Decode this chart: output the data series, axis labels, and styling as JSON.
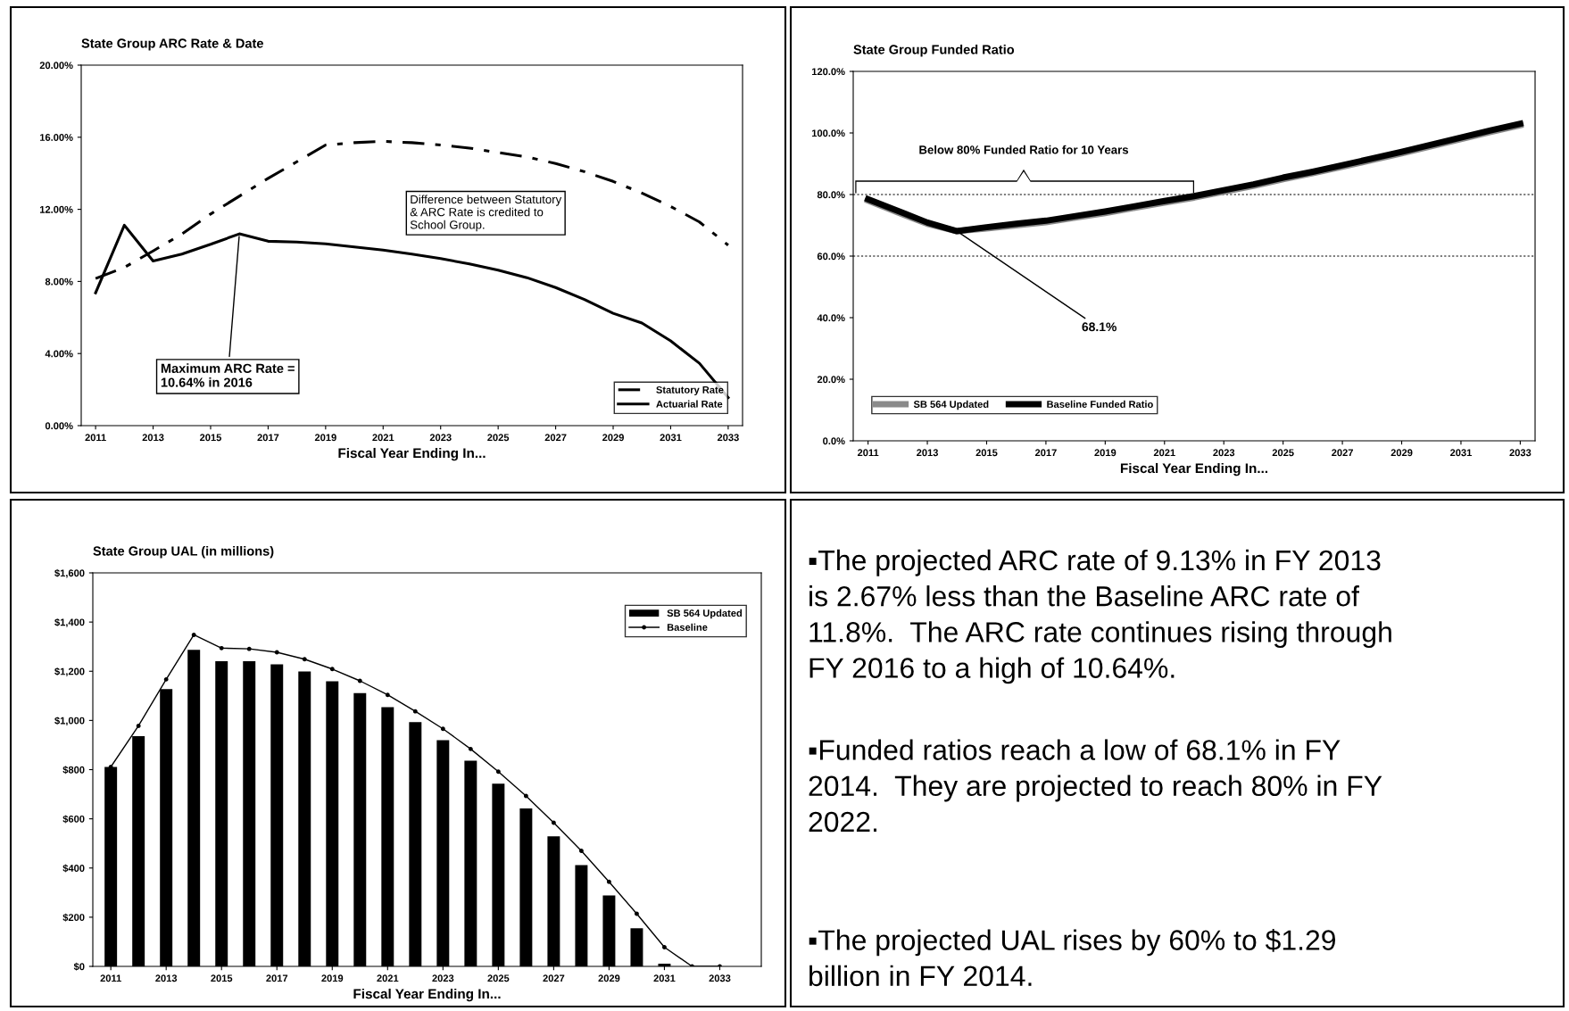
{
  "chart_data": [
    {
      "type": "line",
      "title": "State Group ARC Rate & Date",
      "xlabel": "Fiscal Year Ending In...",
      "x": [
        2011,
        2012,
        2013,
        2014,
        2015,
        2016,
        2017,
        2018,
        2019,
        2020,
        2021,
        2022,
        2023,
        2024,
        2025,
        2026,
        2027,
        2028,
        2029,
        2030,
        2031,
        2032,
        2033
      ],
      "series": [
        {
          "name": "Statutory Rate",
          "color": "#000000",
          "line_style": "dashed",
          "values": [
            8.16,
            8.78,
            9.69,
            10.63,
            11.74,
            12.73,
            13.72,
            14.64,
            15.57,
            15.7,
            15.77,
            15.7,
            15.57,
            15.4,
            15.15,
            14.91,
            14.54,
            14.09,
            13.55,
            12.9,
            12.16,
            11.3,
            10.01
          ]
        },
        {
          "name": "Actuarial Rate",
          "color": "#000000",
          "line_style": "solid",
          "values": [
            7.37,
            11.12,
            9.13,
            9.52,
            10.06,
            10.64,
            10.23,
            10.19,
            10.09,
            9.91,
            9.74,
            9.52,
            9.27,
            8.97,
            8.63,
            8.21,
            7.66,
            7.0,
            6.23,
            5.69,
            4.7,
            3.46,
            1.56
          ]
        }
      ],
      "xlim": [
        2010.5,
        2033.5
      ],
      "xticks": [
        2011,
        2013,
        2015,
        2017,
        2019,
        2021,
        2023,
        2025,
        2027,
        2029,
        2031,
        2033
      ],
      "ylim": [
        0,
        20
      ],
      "yticks": [
        {
          "value": 0,
          "label": "0.00%"
        },
        {
          "value": 4,
          "label": "4.00%"
        },
        {
          "value": 8,
          "label": "8.00%"
        },
        {
          "value": 12,
          "label": "12.00%"
        },
        {
          "value": 16,
          "label": "16.00%"
        },
        {
          "value": 20,
          "label": "20.00%"
        }
      ],
      "legend": "bottom right",
      "annotations": [
        "Difference between Statutory\n& ARC Rate is credited to\nSchool Group.",
        {
          "text": "Maximum ARC Rate =\n10.64% in 2016",
          "x": 2016,
          "y": 10.64
        }
      ]
    },
    {
      "type": "line",
      "title": "State Group Funded Ratio",
      "xlabel": "Fiscal Year Ending In...",
      "x": [
        2011,
        2012,
        2013,
        2014,
        2015,
        2016,
        2017,
        2018,
        2019,
        2020,
        2021,
        2022,
        2023,
        2024,
        2025,
        2026,
        2027,
        2028,
        2029,
        2030,
        2031,
        2032,
        2033
      ],
      "series": [
        {
          "name": "SB 564 Updated",
          "color": "#8a8a8a",
          "values": [
            78.0,
            74.2,
            70.5,
            68.1,
            69.0,
            70.0,
            71.0,
            72.5,
            74.0,
            75.7,
            77.4,
            79.0,
            80.9,
            82.8,
            85.0,
            86.9,
            89.0,
            91.2,
            93.4,
            95.7,
            98.0,
            100.3,
            102.5
          ]
        },
        {
          "name": "Baseline Funded Ratio",
          "color": "#000000",
          "values": [
            78.5,
            74.7,
            70.9,
            68.1,
            69.4,
            70.5,
            71.5,
            73.0,
            74.5,
            76.2,
            77.9,
            79.5,
            81.4,
            83.3,
            85.5,
            87.4,
            89.5,
            91.7,
            93.9,
            96.2,
            98.5,
            100.8,
            103.0
          ]
        }
      ],
      "xlim": [
        2010.5,
        2033.5
      ],
      "xticks": [
        2011,
        2013,
        2015,
        2017,
        2019,
        2021,
        2023,
        2025,
        2027,
        2029,
        2031,
        2033
      ],
      "ylim": [
        0,
        120
      ],
      "yticks": [
        {
          "value": 0,
          "label": "0.0%"
        },
        {
          "value": 20,
          "label": "20.0%"
        },
        {
          "value": 40,
          "label": "40.0%"
        },
        {
          "value": 60,
          "label": "60.0%"
        },
        {
          "value": 80,
          "label": "80.0%"
        },
        {
          "value": 100,
          "label": "100.0%"
        },
        {
          "value": 120,
          "label": "120.0%"
        }
      ],
      "ref_lines": [
        {
          "axis": "y",
          "value": 80,
          "color": "#000000",
          "line_style": "dotted"
        },
        {
          "axis": "y",
          "value": 60,
          "color": "#000000",
          "line_style": "dotted"
        }
      ],
      "legend": "bottom left",
      "annotations": [
        "Below 80% Funded Ratio for 10 Years",
        {
          "text": "68.1%",
          "x": 2014,
          "y": 68.1
        }
      ]
    },
    {
      "type": "bar",
      "title": "State Group UAL (in millions)",
      "xlabel": "Fiscal Year Ending In...",
      "x": [
        2011,
        2012,
        2013,
        2014,
        2015,
        2016,
        2017,
        2018,
        2019,
        2020,
        2021,
        2022,
        2023,
        2024,
        2025,
        2026,
        2027,
        2028,
        2029,
        2030,
        2031,
        2032,
        2033
      ],
      "series": [
        {
          "name": "SB 564 Updated",
          "color": "#000000",
          "values": [
            811,
            936,
            1127,
            1287,
            1241,
            1241,
            1228,
            1199,
            1159,
            1111,
            1054,
            993,
            920,
            836,
            743,
            642,
            529,
            412,
            288,
            155,
            11,
            0,
            0
          ]
        },
        {
          "name": "Baseline",
          "type": "line",
          "marker": "circle",
          "color": "#000000",
          "values": [
            811,
            978,
            1167,
            1348,
            1294,
            1291,
            1277,
            1249,
            1209,
            1161,
            1104,
            1037,
            966,
            884,
            792,
            693,
            584,
            470,
            344,
            214,
            78,
            0,
            0
          ]
        }
      ],
      "xlim": [
        2010.35,
        2034.5
      ],
      "xticks": [
        2011,
        2013,
        2015,
        2017,
        2019,
        2021,
        2023,
        2025,
        2027,
        2029,
        2031,
        2033
      ],
      "ylim": [
        0,
        1600
      ],
      "yticks": [
        {
          "value": 0,
          "label": "$0"
        },
        {
          "value": 200,
          "label": "$200"
        },
        {
          "value": 400,
          "label": "$400"
        },
        {
          "value": 600,
          "label": "$600"
        },
        {
          "value": 800,
          "label": "$800"
        },
        {
          "value": 1000,
          "label": "$1,000"
        },
        {
          "value": 1200,
          "label": "$1,200"
        },
        {
          "value": 1400,
          "label": "$1,400"
        },
        {
          "value": 1600,
          "label": "$1,600"
        }
      ],
      "legend": "top right"
    },
    {
      "type": "other",
      "annotations": [
        "▪The projected ARC rate of 9.13% in FY 2013\nis 2.67% less than the Baseline ARC rate of\n11.8%.  The ARC rate continues rising through\nFY 2016 to a high of 10.64%.",
        "▪Funded ratios reach a low of 68.1% in FY\n2014.  They are projected to reach 80% in FY\n2022.",
        "▪The projected UAL rises by 60% to $1.29\nbillion in FY 2014."
      ]
    }
  ]
}
